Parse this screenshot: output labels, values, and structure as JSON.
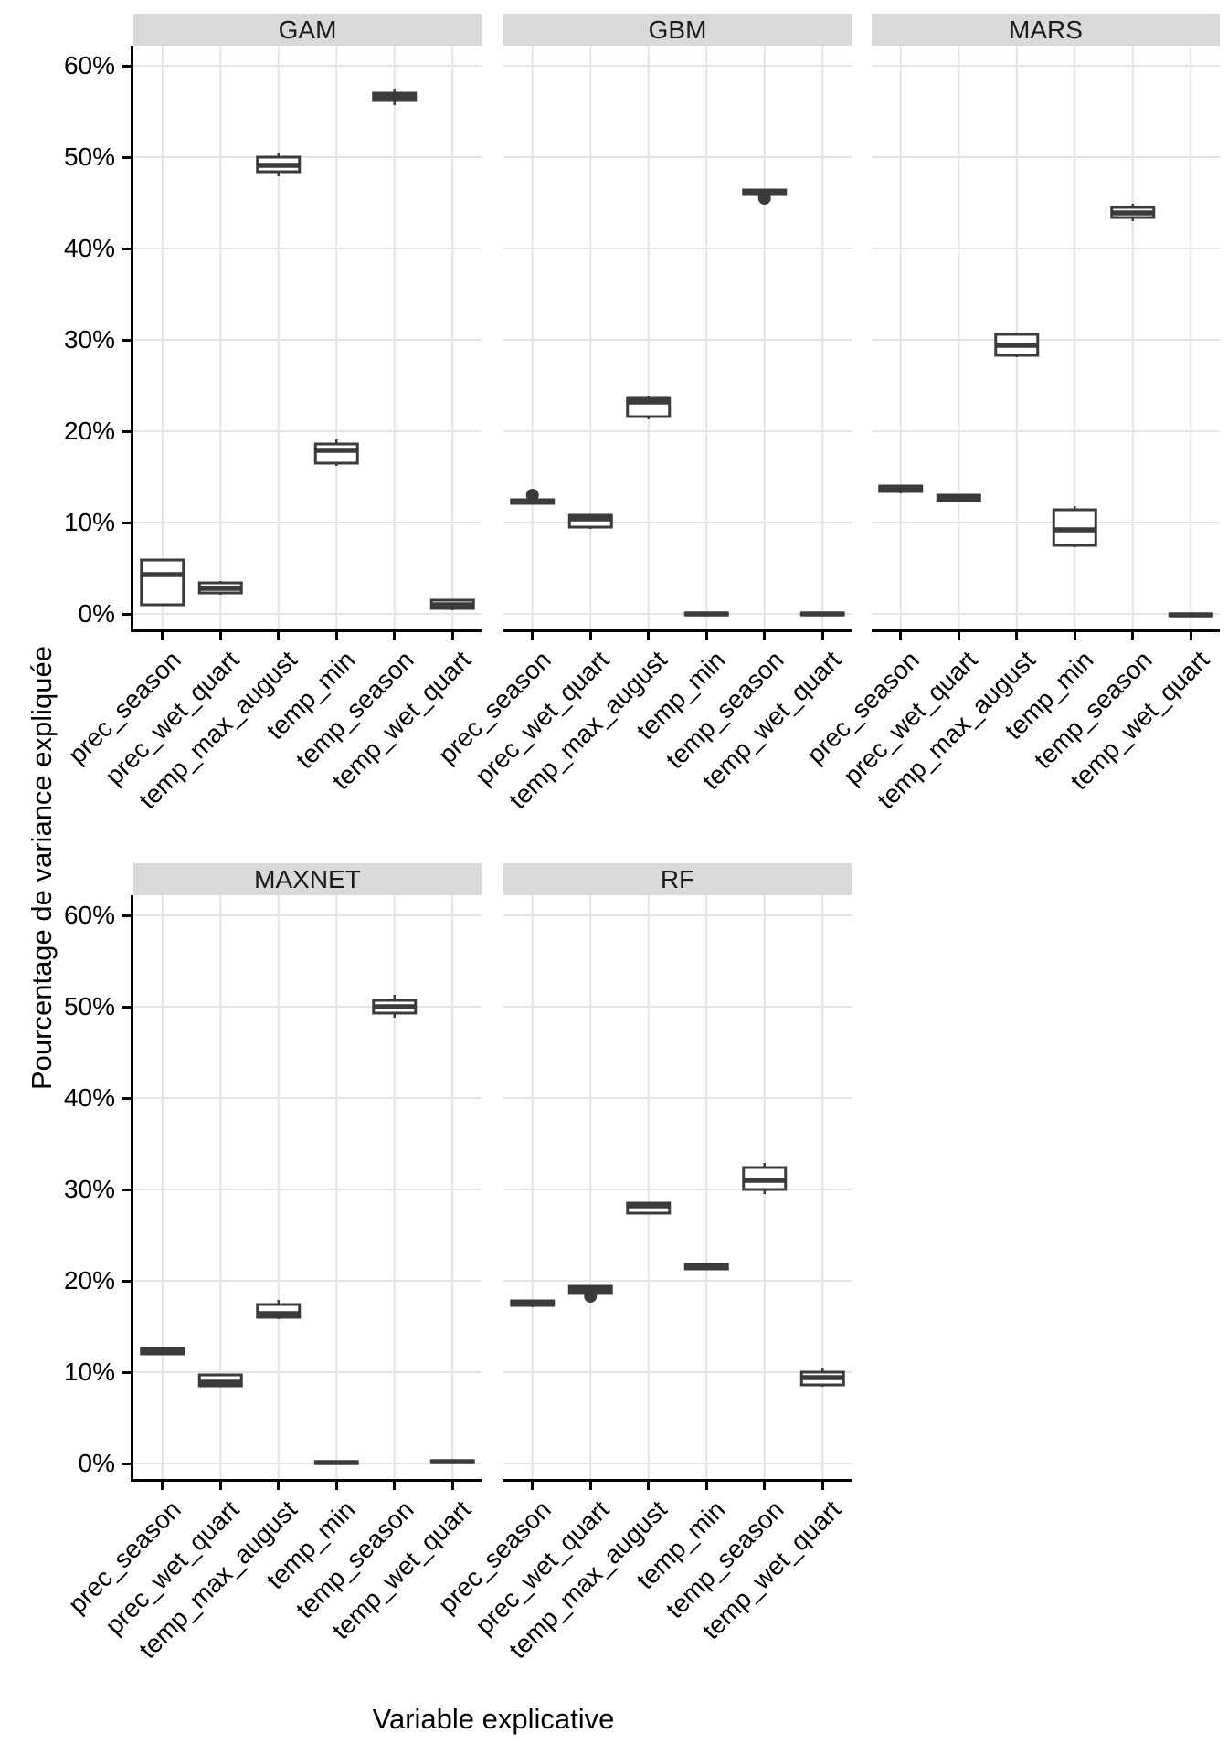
{
  "chart_data": {
    "type": "boxplot",
    "title": "",
    "xlabel": "Variable explicative",
    "ylabel": "Pourcentage de variance expliquée",
    "y_axis": {
      "tick_labels": [
        "60%",
        "50%",
        "40%",
        "30%",
        "20%",
        "10%",
        "0%"
      ],
      "tick_values": [
        60,
        50,
        40,
        30,
        20,
        10,
        0
      ],
      "range_shown": [
        -2.0,
        62.2
      ],
      "grid": "major-horizontal-and-vertical"
    },
    "categories": [
      "prec_season",
      "prec_wet_quart",
      "temp_max_august",
      "temp_min",
      "temp_season",
      "temp_wet_quart"
    ],
    "legend": "none",
    "facets": [
      {
        "label": "GAM",
        "row": 0,
        "col": 0,
        "boxes": [
          {
            "category": "prec_season",
            "lo": 0.9,
            "q1": 1.0,
            "med": 4.3,
            "q3": 5.9,
            "hi": 6.0,
            "outliers": []
          },
          {
            "category": "prec_wet_quart",
            "lo": 2.1,
            "q1": 2.3,
            "med": 2.8,
            "q3": 3.4,
            "hi": 3.6,
            "outliers": []
          },
          {
            "category": "temp_max_august",
            "lo": 47.9,
            "q1": 48.4,
            "med": 49.1,
            "q3": 50.0,
            "hi": 50.4,
            "outliers": []
          },
          {
            "category": "temp_min",
            "lo": 16.2,
            "q1": 16.5,
            "med": 17.9,
            "q3": 18.6,
            "hi": 19.1,
            "outliers": []
          },
          {
            "category": "temp_season",
            "lo": 55.7,
            "q1": 56.2,
            "med": 56.6,
            "q3": 57.0,
            "hi": 57.5,
            "outliers": []
          },
          {
            "category": "temp_wet_quart",
            "lo": 0.4,
            "q1": 0.6,
            "med": 1.0,
            "q3": 1.5,
            "hi": 1.6,
            "outliers": []
          }
        ]
      },
      {
        "label": "GBM",
        "row": 0,
        "col": 1,
        "boxes": [
          {
            "category": "prec_season",
            "lo": 12.0,
            "q1": 12.1,
            "med": 12.3,
            "q3": 12.5,
            "hi": 12.6,
            "outliers": [
              13.0
            ]
          },
          {
            "category": "prec_wet_quart",
            "lo": 9.3,
            "q1": 9.5,
            "med": 10.4,
            "q3": 10.8,
            "hi": 10.9,
            "outliers": []
          },
          {
            "category": "temp_max_august",
            "lo": 21.3,
            "q1": 21.6,
            "med": 23.2,
            "q3": 23.6,
            "hi": 23.9,
            "outliers": []
          },
          {
            "category": "temp_min",
            "lo": -0.1,
            "q1": 0.0,
            "med": 0.0,
            "q3": 0.1,
            "hi": 0.1,
            "outliers": []
          },
          {
            "category": "temp_season",
            "lo": 45.7,
            "q1": 45.9,
            "med": 46.1,
            "q3": 46.4,
            "hi": 46.5,
            "outliers": [
              45.5
            ]
          },
          {
            "category": "temp_wet_quart",
            "lo": -0.1,
            "q1": 0.0,
            "med": 0.0,
            "q3": 0.1,
            "hi": 0.1,
            "outliers": []
          }
        ]
      },
      {
        "label": "MARS",
        "row": 0,
        "col": 2,
        "boxes": [
          {
            "category": "prec_season",
            "lo": 13.2,
            "q1": 13.4,
            "med": 13.7,
            "q3": 14.0,
            "hi": 14.1,
            "outliers": []
          },
          {
            "category": "prec_wet_quart",
            "lo": 12.2,
            "q1": 12.4,
            "med": 12.7,
            "q3": 13.0,
            "hi": 13.1,
            "outliers": []
          },
          {
            "category": "temp_max_august",
            "lo": 28.1,
            "q1": 28.3,
            "med": 29.4,
            "q3": 30.6,
            "hi": 30.8,
            "outliers": []
          },
          {
            "category": "temp_min",
            "lo": 7.3,
            "q1": 7.5,
            "med": 9.2,
            "q3": 11.4,
            "hi": 11.8,
            "outliers": []
          },
          {
            "category": "temp_season",
            "lo": 43.0,
            "q1": 43.4,
            "med": 43.9,
            "q3": 44.5,
            "hi": 44.9,
            "outliers": []
          },
          {
            "category": "temp_wet_quart",
            "lo": -0.3,
            "q1": -0.2,
            "med": -0.1,
            "q3": 0.0,
            "hi": 0.0,
            "outliers": []
          }
        ]
      },
      {
        "label": "MAXNET",
        "row": 1,
        "col": 0,
        "boxes": [
          {
            "category": "prec_season",
            "lo": 11.9,
            "q1": 12.0,
            "med": 12.3,
            "q3": 12.6,
            "hi": 12.7,
            "outliers": []
          },
          {
            "category": "prec_wet_quart",
            "lo": 8.4,
            "q1": 8.5,
            "med": 8.9,
            "q3": 9.7,
            "hi": 9.8,
            "outliers": []
          },
          {
            "category": "temp_max_august",
            "lo": 15.8,
            "q1": 16.0,
            "med": 16.4,
            "q3": 17.4,
            "hi": 17.9,
            "outliers": []
          },
          {
            "category": "temp_min",
            "lo": 0.0,
            "q1": 0.0,
            "med": 0.1,
            "q3": 0.2,
            "hi": 0.2,
            "outliers": []
          },
          {
            "category": "temp_season",
            "lo": 48.8,
            "q1": 49.3,
            "med": 50.0,
            "q3": 50.7,
            "hi": 51.3,
            "outliers": []
          },
          {
            "category": "temp_wet_quart",
            "lo": 0.1,
            "q1": 0.1,
            "med": 0.2,
            "q3": 0.3,
            "hi": 0.3,
            "outliers": []
          }
        ]
      },
      {
        "label": "RF",
        "row": 1,
        "col": 1,
        "boxes": [
          {
            "category": "prec_season",
            "lo": 17.1,
            "q1": 17.3,
            "med": 17.5,
            "q3": 17.8,
            "hi": 17.9,
            "outliers": []
          },
          {
            "category": "prec_wet_quart",
            "lo": 18.5,
            "q1": 18.6,
            "med": 19.0,
            "q3": 19.4,
            "hi": 19.5,
            "outliers": [
              18.3
            ]
          },
          {
            "category": "temp_max_august",
            "lo": 27.3,
            "q1": 27.4,
            "med": 28.2,
            "q3": 28.5,
            "hi": 28.6,
            "outliers": []
          },
          {
            "category": "temp_min",
            "lo": 21.2,
            "q1": 21.3,
            "med": 21.5,
            "q3": 21.8,
            "hi": 21.9,
            "outliers": []
          },
          {
            "category": "temp_season",
            "lo": 29.5,
            "q1": 30.0,
            "med": 31.0,
            "q3": 32.4,
            "hi": 32.9,
            "outliers": []
          },
          {
            "category": "temp_wet_quart",
            "lo": 8.4,
            "q1": 8.6,
            "med": 9.4,
            "q3": 10.0,
            "hi": 10.4,
            "outliers": []
          }
        ]
      }
    ],
    "colors": {
      "box_stroke": "#3b3b3b",
      "box_fill": "#ffffff",
      "gridline": "#e4e4e4",
      "strip_background": "#d9d9d9",
      "axis": "#000000",
      "background": "#ffffff"
    }
  }
}
